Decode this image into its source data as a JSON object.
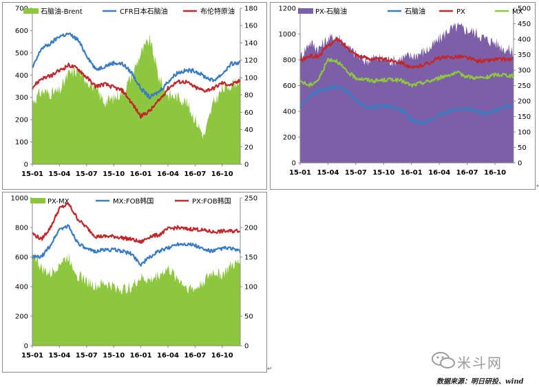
{
  "charts": [
    {
      "type": "line",
      "legend": [
        "石脑油-Brent",
        "CFR日本石脑油",
        "布伦特原油"
      ],
      "yleft_ticks": [
        "0",
        "100",
        "200",
        "300",
        "400",
        "500",
        "600",
        "700"
      ],
      "yright_ticks": [
        "0",
        "20",
        "40",
        "60",
        "80",
        "100",
        "120",
        "140",
        "160",
        "180"
      ],
      "x_ticks": [
        "15-01",
        "15-04",
        "15-07",
        "15-10",
        "16-01",
        "16-04",
        "16-07",
        "16-10"
      ],
      "colors": [
        "#8dc63f",
        "#3a7cc3",
        "#c0282b"
      ]
    },
    {
      "type": "line",
      "legend": [
        "PX-石脑油",
        "石脑油",
        "PX",
        "MX"
      ],
      "yleft_ticks": [
        "0",
        "200",
        "400",
        "600",
        "800",
        "1000",
        "1200"
      ],
      "yright_ticks": [
        "0",
        "50",
        "100",
        "150",
        "200",
        "250",
        "300",
        "350",
        "400",
        "450",
        "500"
      ],
      "x_ticks": [
        "15-01",
        "15-04",
        "15-07",
        "15-10",
        "16-01",
        "16-04",
        "16-07",
        "16-10"
      ],
      "colors": [
        "#7d5fa8",
        "#3a7cc3",
        "#c0282b",
        "#8dc63f"
      ]
    },
    {
      "type": "line",
      "legend": [
        "PX-MX",
        "MX:FOB韩国",
        "PX:FOB韩国"
      ],
      "yleft_ticks": [
        "0",
        "200",
        "400",
        "600",
        "800",
        "1000"
      ],
      "yright_ticks": [
        "0",
        "50",
        "100",
        "150",
        "200",
        "250"
      ],
      "x_ticks": [
        "15-01",
        "15-04",
        "15-07",
        "15-10",
        "16-01",
        "16-04",
        "16-07",
        "16-10"
      ],
      "colors": [
        "#8dc63f",
        "#3a7cc3",
        "#c0282b"
      ]
    }
  ],
  "watermark": {
    "text": "米斗网"
  },
  "source_note": "数据来源：明日研投、wind",
  "chart_data": [
    {
      "type": "line",
      "x": [
        "15-01",
        "15-02",
        "15-03",
        "15-04",
        "15-05",
        "15-06",
        "15-07",
        "15-08",
        "15-09",
        "15-10",
        "15-11",
        "15-12",
        "16-01",
        "16-02",
        "16-03",
        "16-04",
        "16-05",
        "16-06",
        "16-07",
        "16-08",
        "16-09",
        "16-10",
        "16-11",
        "16-12"
      ],
      "ylim": [
        0,
        700
      ],
      "y2lim": [
        0,
        180
      ],
      "series": [
        {
          "name": "石脑油-Brent",
          "axis": "right",
          "kind": "area",
          "values": [
            72,
            84,
            82,
            84,
            104,
            108,
            98,
            86,
            72,
            76,
            84,
            102,
            128,
            144,
            100,
            80,
            78,
            72,
            52,
            32,
            70,
            86,
            92,
            98
          ]
        },
        {
          "name": "CFR日本石脑油",
          "axis": "left",
          "values": [
            430,
            520,
            540,
            575,
            585,
            560,
            490,
            425,
            440,
            455,
            450,
            410,
            340,
            300,
            325,
            370,
            410,
            420,
            420,
            395,
            375,
            405,
            450,
            455
          ]
        },
        {
          "name": "布伦特原油",
          "axis": "left",
          "values": [
            345,
            385,
            395,
            420,
            445,
            430,
            390,
            350,
            360,
            345,
            330,
            275,
            215,
            240,
            285,
            340,
            370,
            370,
            345,
            330,
            340,
            365,
            355,
            375
          ]
        }
      ]
    },
    {
      "type": "line",
      "x": [
        "15-01",
        "15-02",
        "15-03",
        "15-04",
        "15-05",
        "15-06",
        "15-07",
        "15-08",
        "15-09",
        "15-10",
        "15-11",
        "15-12",
        "16-01",
        "16-02",
        "16-03",
        "16-04",
        "16-05",
        "16-06",
        "16-07",
        "16-08",
        "16-09",
        "16-10",
        "16-11",
        "16-12"
      ],
      "ylim": [
        0,
        1200
      ],
      "y2lim": [
        0,
        500
      ],
      "series": [
        {
          "name": "PX-石脑油",
          "axis": "right",
          "kind": "area",
          "values": [
            340,
            390,
            370,
            400,
            410,
            380,
            350,
            330,
            340,
            335,
            330,
            340,
            345,
            355,
            370,
            400,
            430,
            440,
            430,
            420,
            400,
            390,
            370,
            360
          ]
        },
        {
          "name": "石脑油",
          "axis": "left",
          "values": [
            430,
            520,
            560,
            580,
            595,
            560,
            490,
            430,
            435,
            445,
            435,
            405,
            330,
            310,
            330,
            370,
            405,
            415,
            420,
            400,
            380,
            405,
            440,
            450
          ]
        },
        {
          "name": "PX",
          "axis": "right",
          "values": [
            330,
            345,
            345,
            380,
            400,
            375,
            350,
            340,
            335,
            335,
            330,
            325,
            305,
            315,
            325,
            340,
            340,
            345,
            340,
            330,
            330,
            335,
            335,
            335
          ]
        },
        {
          "name": "MX",
          "axis": "right",
          "values": [
            265,
            250,
            270,
            335,
            330,
            295,
            275,
            270,
            265,
            268,
            270,
            265,
            250,
            258,
            265,
            275,
            285,
            290,
            280,
            275,
            275,
            285,
            285,
            280
          ]
        }
      ]
    },
    {
      "type": "line",
      "x": [
        "15-01",
        "15-02",
        "15-03",
        "15-04",
        "15-05",
        "15-06",
        "15-07",
        "15-08",
        "15-09",
        "15-10",
        "15-11",
        "15-12",
        "16-01",
        "16-02",
        "16-03",
        "16-04",
        "16-05",
        "16-06",
        "16-07",
        "16-08",
        "16-09",
        "16-10",
        "16-11",
        "16-12"
      ],
      "ylim": [
        0,
        1000
      ],
      "y2lim": [
        0,
        250
      ],
      "series": [
        {
          "name": "PX-MX",
          "axis": "right",
          "kind": "area",
          "values": [
            160,
            130,
            120,
            140,
            150,
            120,
            110,
            100,
            105,
            100,
            95,
            100,
            115,
            110,
            120,
            130,
            115,
            100,
            95,
            110,
            125,
            120,
            135,
            140
          ]
        },
        {
          "name": "MX:FOB韩国",
          "axis": "left",
          "values": [
            600,
            600,
            680,
            790,
            810,
            700,
            650,
            640,
            650,
            650,
            640,
            620,
            550,
            600,
            640,
            660,
            690,
            690,
            680,
            650,
            640,
            660,
            660,
            635
          ]
        },
        {
          "name": "PX:FOB韩国",
          "axis": "left",
          "values": [
            760,
            720,
            800,
            930,
            960,
            860,
            800,
            740,
            740,
            740,
            730,
            720,
            700,
            740,
            750,
            790,
            800,
            790,
            790,
            780,
            770,
            775,
            775,
            780
          ]
        }
      ]
    }
  ]
}
